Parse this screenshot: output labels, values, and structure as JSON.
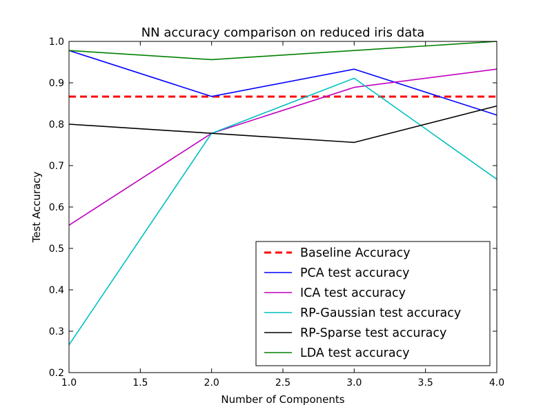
{
  "chart_data": {
    "type": "line",
    "title": "NN accuracy comparison on reduced iris data",
    "xlabel": "Number of Components",
    "ylabel": "Test Accuracy",
    "xlim": [
      1.0,
      4.0
    ],
    "ylim": [
      0.2,
      1.0
    ],
    "xticks": [
      "1.0",
      "1.5",
      "2.0",
      "2.5",
      "3.0",
      "3.5",
      "4.0"
    ],
    "yticks": [
      "0.2",
      "0.3",
      "0.4",
      "0.5",
      "0.6",
      "0.7",
      "0.8",
      "0.9",
      "1.0"
    ],
    "grid": false,
    "legend_position": "lower-right",
    "x": [
      1,
      2,
      3,
      4
    ],
    "series": [
      {
        "name": "Baseline Accuracy",
        "color": "#ff0000",
        "dashed": true,
        "values": [
          0.8667,
          0.8667,
          0.8667,
          0.8667
        ]
      },
      {
        "name": "PCA test accuracy",
        "color": "#0000ff",
        "dashed": false,
        "values": [
          0.978,
          0.867,
          0.933,
          0.822
        ]
      },
      {
        "name": "ICA test accuracy",
        "color": "#bf00bf",
        "dashed": false,
        "values": [
          0.556,
          0.778,
          0.889,
          0.933
        ]
      },
      {
        "name": "RP-Gaussian test accuracy",
        "color": "#00bfbf",
        "dashed": false,
        "values": [
          0.267,
          0.778,
          0.911,
          0.667
        ]
      },
      {
        "name": "RP-Sparse test accuracy",
        "color": "#000000",
        "dashed": false,
        "values": [
          0.8,
          0.778,
          0.756,
          0.844
        ]
      },
      {
        "name": "LDA test accuracy",
        "color": "#008000",
        "dashed": false,
        "values": [
          0.978,
          0.956,
          0.978,
          1.0
        ]
      }
    ]
  }
}
